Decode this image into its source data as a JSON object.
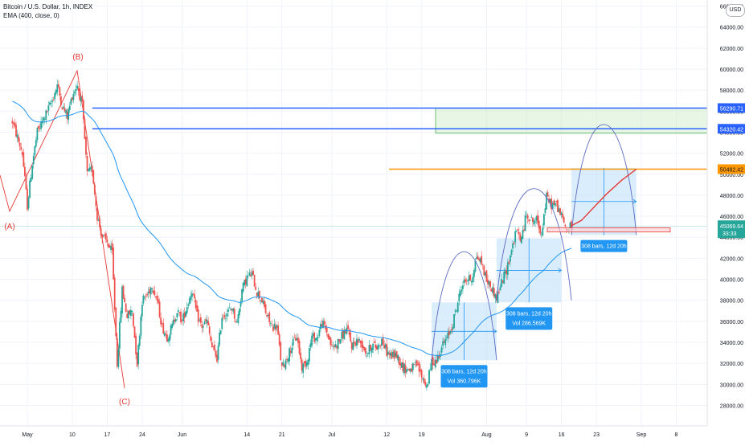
{
  "legend": {
    "title": "Bitcoin / U.S. Dollar, 1h, INDEX",
    "indicator": "EMA (400, close, 0)"
  },
  "scale_badge": "USD",
  "colors": {
    "up": "#26a69a",
    "down": "#ef5350",
    "ema": "#2196f3",
    "hline_blue": "#2962ff",
    "hline_orange": "#ff9800",
    "projection": "#e53935",
    "wave": "#e53935",
    "zone_green": "#b9e6b4",
    "measure_fill": "#bbdefb",
    "measure_label": "#2196f3",
    "arc": "#5c6bc0"
  },
  "chart_data": {
    "type": "candlestick",
    "title": "Bitcoin / U.S. Dollar, 1h, INDEX",
    "ylim": [
      27000,
      66000
    ],
    "y_ticks": [
      28000,
      30000,
      32000,
      34000,
      36000,
      38000,
      40000,
      42000,
      44000,
      46000,
      48000,
      50000,
      52000,
      54000,
      56000,
      58000,
      60000,
      62000,
      64000,
      66000
    ],
    "y_tick_labels": [
      "28000.00",
      "30000.00",
      "32000.00",
      "34000.00",
      "36000.00",
      "38000.00",
      "40000.00",
      "42000.00",
      "44000.00",
      "46000.00",
      "48000.00",
      "50000.00",
      "52000.00",
      "54000.00",
      "56000.00",
      "58000.00",
      "60000.00",
      "62000.00",
      "64000.00",
      "66000.00"
    ],
    "x_range": [
      "2021-04-28",
      "2021-09-20"
    ],
    "x_ticks": [
      {
        "date": "2021-05-01",
        "label": "May"
      },
      {
        "date": "2021-05-10",
        "label": "10"
      },
      {
        "date": "2021-05-17",
        "label": "17"
      },
      {
        "date": "2021-05-24",
        "label": "24"
      },
      {
        "date": "2021-06-01",
        "label": "Jun"
      },
      {
        "date": "2021-06-14",
        "label": "14"
      },
      {
        "date": "2021-06-21",
        "label": "21"
      },
      {
        "date": "2021-07-01",
        "label": "Jul"
      },
      {
        "date": "2021-07-12",
        "label": "12"
      },
      {
        "date": "2021-07-19",
        "label": "19"
      },
      {
        "date": "2021-08-01",
        "label": "Aug"
      },
      {
        "date": "2021-08-09",
        "label": "9"
      },
      {
        "date": "2021-08-16",
        "label": "16"
      },
      {
        "date": "2021-08-23",
        "label": "23"
      },
      {
        "date": "2021-09-01",
        "label": "Sep"
      },
      {
        "date": "2021-09-08",
        "label": "8"
      }
    ],
    "price_path": [
      [
        "2021-04-28",
        55000
      ],
      [
        "2021-04-29",
        53500
      ],
      [
        "2021-04-30",
        52000
      ],
      [
        "2021-05-01",
        47000
      ],
      [
        "2021-05-02",
        51000
      ],
      [
        "2021-05-03",
        54000
      ],
      [
        "2021-05-04",
        55000
      ],
      [
        "2021-05-05",
        56000
      ],
      [
        "2021-05-06",
        57000
      ],
      [
        "2021-05-07",
        58500
      ],
      [
        "2021-05-08",
        56500
      ],
      [
        "2021-05-09",
        55500
      ],
      [
        "2021-05-10",
        57500
      ],
      [
        "2021-05-11",
        58500
      ],
      [
        "2021-05-12",
        56500
      ],
      [
        "2021-05-13",
        50000
      ],
      [
        "2021-05-14",
        50500
      ],
      [
        "2021-05-15",
        46000
      ],
      [
        "2021-05-16",
        44000
      ],
      [
        "2021-05-17",
        43500
      ],
      [
        "2021-05-18",
        42500
      ],
      [
        "2021-05-19",
        32000
      ],
      [
        "2021-05-20",
        39000
      ],
      [
        "2021-05-21",
        36500
      ],
      [
        "2021-05-22",
        37000
      ],
      [
        "2021-05-23",
        32000
      ],
      [
        "2021-05-24",
        38000
      ],
      [
        "2021-05-25",
        38500
      ],
      [
        "2021-05-26",
        39500
      ],
      [
        "2021-05-27",
        38000
      ],
      [
        "2021-05-28",
        35500
      ],
      [
        "2021-05-29",
        34500
      ],
      [
        "2021-05-30",
        35500
      ],
      [
        "2021-05-31",
        37000
      ],
      [
        "2021-06-01",
        36000
      ],
      [
        "2021-06-02",
        37500
      ],
      [
        "2021-06-03",
        39000
      ],
      [
        "2021-06-04",
        36500
      ],
      [
        "2021-06-05",
        35500
      ],
      [
        "2021-06-06",
        36000
      ],
      [
        "2021-06-07",
        33500
      ],
      [
        "2021-06-08",
        32500
      ],
      [
        "2021-06-09",
        36500
      ],
      [
        "2021-06-10",
        36800
      ],
      [
        "2021-06-11",
        37300
      ],
      [
        "2021-06-12",
        35800
      ],
      [
        "2021-06-13",
        39000
      ],
      [
        "2021-06-14",
        40200
      ],
      [
        "2021-06-15",
        40500
      ],
      [
        "2021-06-16",
        38800
      ],
      [
        "2021-06-17",
        38000
      ],
      [
        "2021-06-18",
        36500
      ],
      [
        "2021-06-19",
        35500
      ],
      [
        "2021-06-20",
        35500
      ],
      [
        "2021-06-21",
        31500
      ],
      [
        "2021-06-22",
        32500
      ],
      [
        "2021-06-23",
        33700
      ],
      [
        "2021-06-24",
        34600
      ],
      [
        "2021-06-25",
        31600
      ],
      [
        "2021-06-26",
        32200
      ],
      [
        "2021-06-27",
        34500
      ],
      [
        "2021-06-28",
        34400
      ],
      [
        "2021-06-29",
        35900
      ],
      [
        "2021-06-30",
        35000
      ],
      [
        "2021-07-01",
        33500
      ],
      [
        "2021-07-02",
        33800
      ],
      [
        "2021-07-03",
        34600
      ],
      [
        "2021-07-04",
        35300
      ],
      [
        "2021-07-05",
        33700
      ],
      [
        "2021-07-06",
        34200
      ],
      [
        "2021-07-07",
        33900
      ],
      [
        "2021-07-08",
        32900
      ],
      [
        "2021-07-09",
        33800
      ],
      [
        "2021-07-10",
        33500
      ],
      [
        "2021-07-11",
        34200
      ],
      [
        "2021-07-12",
        33100
      ],
      [
        "2021-07-13",
        32700
      ],
      [
        "2021-07-14",
        32800
      ],
      [
        "2021-07-15",
        31800
      ],
      [
        "2021-07-16",
        31400
      ],
      [
        "2021-07-17",
        31500
      ],
      [
        "2021-07-18",
        31800
      ],
      [
        "2021-07-19",
        30800
      ],
      [
        "2021-07-20",
        29800
      ],
      [
        "2021-07-21",
        32100
      ],
      [
        "2021-07-22",
        32300
      ],
      [
        "2021-07-23",
        33600
      ],
      [
        "2021-07-24",
        34300
      ],
      [
        "2021-07-25",
        35400
      ],
      [
        "2021-07-26",
        37300
      ],
      [
        "2021-07-27",
        39400
      ],
      [
        "2021-07-28",
        40000
      ],
      [
        "2021-07-29",
        40000
      ],
      [
        "2021-07-30",
        42200
      ],
      [
        "2021-07-31",
        41600
      ],
      [
        "2021-08-01",
        39900
      ],
      [
        "2021-08-02",
        39200
      ],
      [
        "2021-08-03",
        38200
      ],
      [
        "2021-08-04",
        39700
      ],
      [
        "2021-08-05",
        40900
      ],
      [
        "2021-08-06",
        42800
      ],
      [
        "2021-08-07",
        44600
      ],
      [
        "2021-08-08",
        43800
      ],
      [
        "2021-08-09",
        46300
      ],
      [
        "2021-08-10",
        45600
      ],
      [
        "2021-08-11",
        45600
      ],
      [
        "2021-08-12",
        44400
      ],
      [
        "2021-08-13",
        47800
      ],
      [
        "2021-08-14",
        47100
      ],
      [
        "2021-08-15",
        47100
      ],
      [
        "2021-08-16",
        46000
      ],
      [
        "2021-08-17",
        44700
      ],
      [
        "2021-08-18",
        45100
      ]
    ],
    "wave_labels": [
      {
        "label": "(A)",
        "date": "2021-05-01",
        "price": 46500
      },
      {
        "label": "(B)",
        "date": "2021-05-10",
        "price": 61500
      },
      {
        "label": "(C)",
        "date": "2021-05-19",
        "price": 29300
      }
    ],
    "horizontal_levels": [
      {
        "price": 56290.71,
        "label": "56290.71",
        "color": "#2962ff",
        "from": "2021-05-12"
      },
      {
        "price": 54320.42,
        "label": "54320.42",
        "color": "#2962ff",
        "from": "2021-05-12"
      },
      {
        "price": 50482.42,
        "label": "50482.42",
        "color": "#ff9800",
        "from": "2021-07-12"
      },
      {
        "price": 45069.64,
        "label": "45069.64",
        "color": "#26a69a",
        "from": "2021-04-28"
      }
    ],
    "last_price_countdown": "33:33",
    "target_zone": {
      "from": "2021-07-21",
      "to": "2021-09-20",
      "low": 53900,
      "high": 56290.71
    },
    "measure_boxes": [
      {
        "from": "2021-07-21",
        "to": "2021-08-03",
        "low": 32300,
        "high": 37800,
        "label": "308 bars, 12d 20h",
        "vol": "Vol 360.796K"
      },
      {
        "from": "2021-08-03",
        "to": "2021-08-16",
        "low": 37800,
        "high": 43900,
        "label": "308 bars, 12d 20h",
        "vol": "Vol 286.569K"
      },
      {
        "from": "2021-08-18",
        "to": "2021-08-31",
        "low": 44200,
        "high": 50600,
        "label": "308 bars, 12d 20h",
        "vol": ""
      }
    ],
    "arcs": [
      {
        "from": "2021-07-21",
        "to": "2021-08-03",
        "base": 32300,
        "peak": 42500
      },
      {
        "from": "2021-08-03",
        "to": "2021-08-18",
        "base": 38000,
        "peak": 48500
      },
      {
        "from": "2021-08-18",
        "to": "2021-08-31",
        "base": 44200,
        "peak": 54600
      }
    ],
    "projection": [
      [
        "2021-08-18",
        45100
      ],
      [
        "2021-08-20",
        45600
      ],
      [
        "2021-08-22",
        46600
      ],
      [
        "2021-08-25",
        48100
      ],
      [
        "2021-08-28",
        49400
      ],
      [
        "2021-08-31",
        50482
      ]
    ],
    "projection_box": {
      "from": "2021-08-17",
      "to": "2021-09-02",
      "low": 44500,
      "high": 44900
    }
  }
}
